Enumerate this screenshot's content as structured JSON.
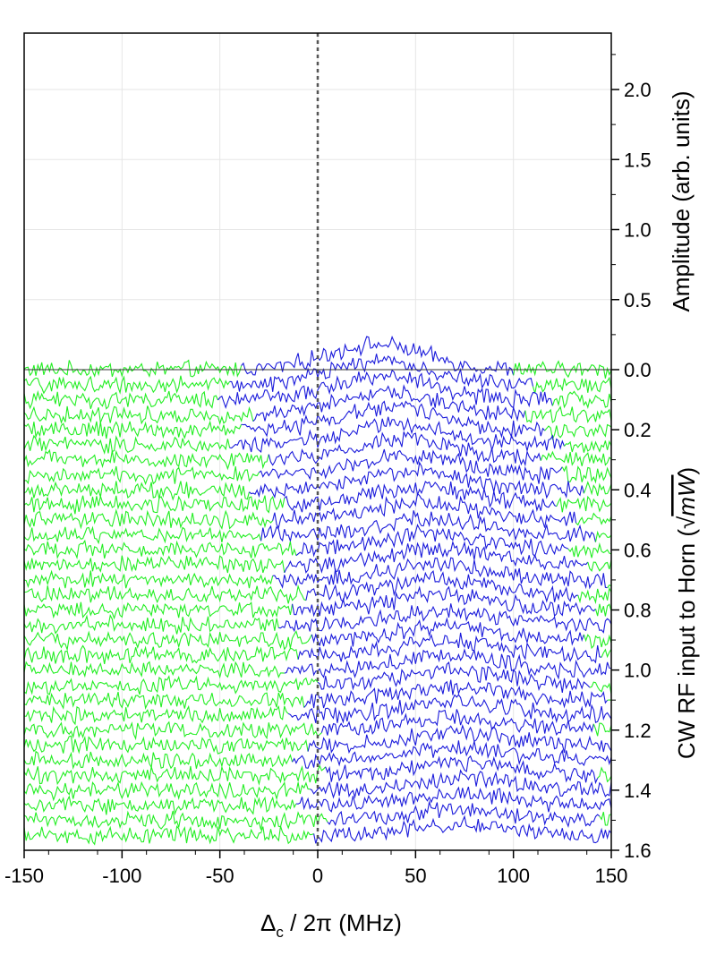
{
  "chart_data": {
    "type": "line",
    "x_axis": {
      "label_main": "Δ",
      "label_sub": "c",
      "label_rest": " / 2π (MHz)",
      "range": [
        -150,
        150
      ],
      "ticks": [
        -150,
        -100,
        -50,
        0,
        50,
        100,
        150
      ],
      "tick_labels": [
        "-150",
        "-100",
        "-50",
        "0",
        "50",
        "100",
        "150"
      ]
    },
    "y_axis_upper": {
      "label": "Amplitude (arb. units)",
      "range": [
        0,
        2.4
      ],
      "ticks": [
        0.0,
        0.5,
        1.0,
        1.5,
        2.0
      ],
      "tick_labels": [
        "0.0",
        "0.5",
        "1.0",
        "1.5",
        "2.0"
      ]
    },
    "y_axis_lower": {
      "label_prefix": "CW RF input to Horn (",
      "label_root": "√",
      "label_arg": "mW",
      "label_suffix": ")",
      "range": [
        0,
        1.6
      ],
      "ticks": [
        0.2,
        0.4,
        0.6,
        0.8,
        1.0,
        1.2,
        1.4,
        1.6
      ],
      "tick_labels": [
        "0.2",
        "0.4",
        "0.6",
        "0.8",
        "1.0",
        "1.2",
        "1.4",
        "1.6"
      ]
    },
    "reference_line_x": 0,
    "grid": true,
    "line_colors": {
      "blue": "#1a1adb",
      "green": "#22ee22"
    },
    "series": [
      {
        "offset": 0.0,
        "peak_center": 30,
        "peak_height": 0.18
      },
      {
        "offset": 0.05,
        "peak_center": 32,
        "peak_height": 0.17
      },
      {
        "offset": 0.1,
        "peak_center": 34,
        "peak_height": 0.17
      },
      {
        "offset": 0.15,
        "peak_center": 36,
        "peak_height": 0.16
      },
      {
        "offset": 0.2,
        "peak_center": 38,
        "peak_height": 0.16
      },
      {
        "offset": 0.25,
        "peak_center": 40,
        "peak_height": 0.15
      },
      {
        "offset": 0.3,
        "peak_center": 44,
        "peak_height": 0.15
      },
      {
        "offset": 0.35,
        "peak_center": 47,
        "peak_height": 0.14
      },
      {
        "offset": 0.4,
        "peak_center": 50,
        "peak_height": 0.14
      },
      {
        "offset": 0.45,
        "peak_center": 52,
        "peak_height": 0.13
      },
      {
        "offset": 0.5,
        "peak_center": 54,
        "peak_height": 0.13
      },
      {
        "offset": 0.55,
        "peak_center": 56,
        "peak_height": 0.12
      },
      {
        "offset": 0.6,
        "peak_center": 58,
        "peak_height": 0.12
      },
      {
        "offset": 0.65,
        "peak_center": 60,
        "peak_height": 0.12
      },
      {
        "offset": 0.7,
        "peak_center": 62,
        "peak_height": 0.11
      },
      {
        "offset": 0.75,
        "peak_center": 63,
        "peak_height": 0.11
      },
      {
        "offset": 0.8,
        "peak_center": 64,
        "peak_height": 0.11
      },
      {
        "offset": 0.85,
        "peak_center": 65,
        "peak_height": 0.1
      },
      {
        "offset": 0.9,
        "peak_center": 66,
        "peak_height": 0.1
      },
      {
        "offset": 0.95,
        "peak_center": 67,
        "peak_height": 0.1
      },
      {
        "offset": 1.0,
        "peak_center": 68,
        "peak_height": 0.1
      },
      {
        "offset": 1.05,
        "peak_center": 69,
        "peak_height": 0.1
      },
      {
        "offset": 1.1,
        "peak_center": 70,
        "peak_height": 0.1
      },
      {
        "offset": 1.15,
        "peak_center": 70,
        "peak_height": 0.09
      },
      {
        "offset": 1.2,
        "peak_center": 71,
        "peak_height": 0.09
      },
      {
        "offset": 1.25,
        "peak_center": 72,
        "peak_height": 0.09
      },
      {
        "offset": 1.3,
        "peak_center": 72,
        "peak_height": 0.09
      },
      {
        "offset": 1.35,
        "peak_center": 73,
        "peak_height": 0.09
      },
      {
        "offset": 1.4,
        "peak_center": 73,
        "peak_height": 0.08
      },
      {
        "offset": 1.45,
        "peak_center": 74,
        "peak_height": 0.08
      },
      {
        "offset": 1.5,
        "peak_center": 74,
        "peak_height": 0.08
      },
      {
        "offset": 1.55,
        "peak_center": 75,
        "peak_height": 0.08
      }
    ]
  }
}
